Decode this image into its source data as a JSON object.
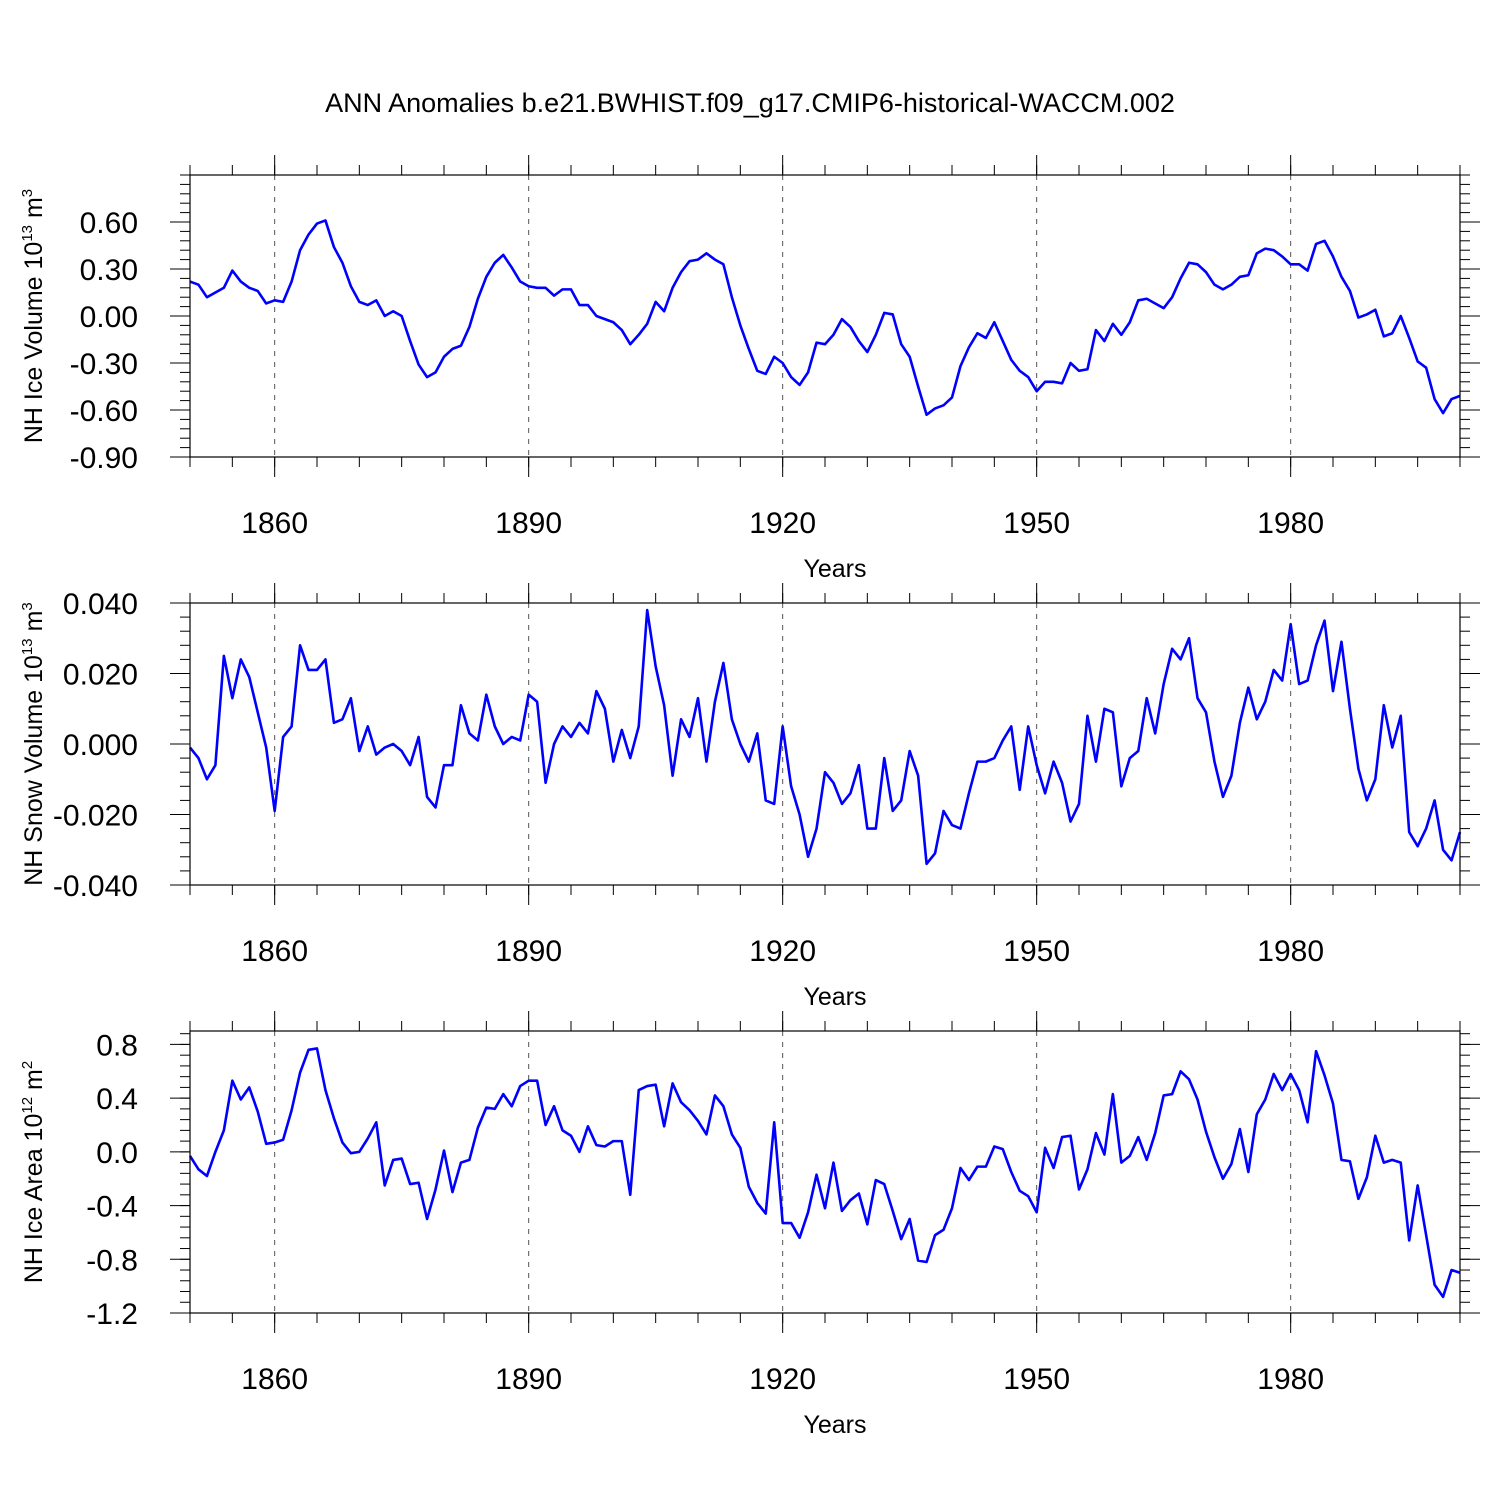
{
  "figure_title": "ANN Anomalies b.e21.BWHIST.f09_g17.CMIP6-historical-WACCM.002",
  "colors": {
    "line": "#0000ff",
    "frame": "#000000",
    "grid": "#555555"
  },
  "chart_data": [
    {
      "type": "line",
      "ylabel": {
        "base": "NH Ice Volume 10",
        "exp": "13",
        "unit": " m",
        "unit_exp": "3"
      },
      "xlabel": "Years",
      "xlim": [
        1850,
        2000
      ],
      "ylim": [
        -0.9,
        0.9
      ],
      "xticks": [
        1860,
        1890,
        1920,
        1950,
        1980
      ],
      "xtick_labels": [
        "1860",
        "1890",
        "1920",
        "1950",
        "1980"
      ],
      "yticks": [
        0.6,
        0.3,
        0.0,
        -0.3,
        -0.6,
        -0.9
      ],
      "ytick_labels": [
        "0.60",
        "0.30",
        "0.00",
        "-0.30",
        "-0.60",
        "-0.90"
      ],
      "x_start": 1850,
      "values": [
        0.22,
        0.2,
        0.12,
        0.15,
        0.18,
        0.29,
        0.22,
        0.18,
        0.16,
        0.08,
        0.1,
        0.09,
        0.22,
        0.42,
        0.52,
        0.59,
        0.61,
        0.44,
        0.34,
        0.19,
        0.09,
        0.07,
        0.1,
        0.0,
        0.03,
        0.0,
        -0.16,
        -0.31,
        -0.39,
        -0.36,
        -0.26,
        -0.21,
        -0.19,
        -0.07,
        0.11,
        0.25,
        0.34,
        0.39,
        0.31,
        0.22,
        0.19,
        0.18,
        0.18,
        0.13,
        0.17,
        0.17,
        0.07,
        0.07,
        0.0,
        -0.02,
        -0.04,
        -0.09,
        -0.18,
        -0.12,
        -0.05,
        0.09,
        0.03,
        0.18,
        0.28,
        0.35,
        0.36,
        0.4,
        0.36,
        0.33,
        0.12,
        -0.06,
        -0.21,
        -0.35,
        -0.37,
        -0.26,
        -0.3,
        -0.39,
        -0.44,
        -0.36,
        -0.17,
        -0.18,
        -0.12,
        -0.02,
        -0.07,
        -0.16,
        -0.23,
        -0.12,
        0.02,
        0.01,
        -0.18,
        -0.26,
        -0.45,
        -0.63,
        -0.59,
        -0.57,
        -0.52,
        -0.32,
        -0.2,
        -0.11,
        -0.14,
        -0.04,
        -0.16,
        -0.28,
        -0.35,
        -0.39,
        -0.48,
        -0.42,
        -0.42,
        -0.43,
        -0.3,
        -0.35,
        -0.34,
        -0.09,
        -0.16,
        -0.05,
        -0.12,
        -0.04,
        0.1,
        0.11,
        0.08,
        0.05,
        0.12,
        0.24,
        0.34,
        0.33,
        0.28,
        0.2,
        0.17,
        0.2,
        0.25,
        0.26,
        0.4,
        0.43,
        0.42,
        0.38,
        0.33,
        0.33,
        0.29,
        0.46,
        0.48,
        0.38,
        0.25,
        0.16,
        -0.01,
        0.01,
        0.04,
        -0.13,
        -0.11,
        0.0,
        -0.14,
        -0.29,
        -0.33,
        -0.53,
        -0.62,
        -0.53,
        -0.51
      ]
    },
    {
      "type": "line",
      "ylabel": {
        "base": "NH Snow Volume 10",
        "exp": "13",
        "unit": " m",
        "unit_exp": "3"
      },
      "xlabel": "Years",
      "xlim": [
        1850,
        2000
      ],
      "ylim": [
        -0.04,
        0.04
      ],
      "xticks": [
        1860,
        1890,
        1920,
        1950,
        1980
      ],
      "xtick_labels": [
        "1860",
        "1890",
        "1920",
        "1950",
        "1980"
      ],
      "yticks": [
        0.04,
        0.02,
        0.0,
        -0.02,
        -0.04
      ],
      "ytick_labels": [
        "0.040",
        "0.020",
        "0.000",
        "-0.020",
        "-0.040"
      ],
      "x_start": 1850,
      "values": [
        -0.001,
        -0.004,
        -0.01,
        -0.006,
        0.025,
        0.013,
        0.024,
        0.019,
        0.009,
        -0.001,
        -0.019,
        0.002,
        0.005,
        0.028,
        0.021,
        0.021,
        0.024,
        0.006,
        0.007,
        0.013,
        -0.002,
        0.005,
        -0.003,
        -0.001,
        0.0,
        -0.002,
        -0.006,
        0.002,
        -0.015,
        -0.018,
        -0.006,
        -0.006,
        0.011,
        0.003,
        0.001,
        0.014,
        0.005,
        0.0,
        0.002,
        0.001,
        0.014,
        0.012,
        -0.011,
        0.0,
        0.005,
        0.002,
        0.006,
        0.003,
        0.015,
        0.01,
        -0.005,
        0.004,
        -0.004,
        0.005,
        0.038,
        0.022,
        0.011,
        -0.009,
        0.007,
        0.002,
        0.013,
        -0.005,
        0.012,
        0.023,
        0.007,
        0.0,
        -0.005,
        0.003,
        -0.016,
        -0.017,
        0.005,
        -0.012,
        -0.02,
        -0.032,
        -0.024,
        -0.008,
        -0.011,
        -0.017,
        -0.014,
        -0.006,
        -0.024,
        -0.024,
        -0.004,
        -0.019,
        -0.016,
        -0.002,
        -0.009,
        -0.034,
        -0.031,
        -0.019,
        -0.023,
        -0.024,
        -0.014,
        -0.005,
        -0.005,
        -0.004,
        0.001,
        0.005,
        -0.013,
        0.005,
        -0.006,
        -0.014,
        -0.005,
        -0.011,
        -0.022,
        -0.017,
        0.008,
        -0.005,
        0.01,
        0.009,
        -0.012,
        -0.004,
        -0.002,
        0.013,
        0.003,
        0.017,
        0.027,
        0.024,
        0.03,
        0.013,
        0.009,
        -0.005,
        -0.015,
        -0.009,
        0.006,
        0.016,
        0.007,
        0.012,
        0.021,
        0.018,
        0.034,
        0.017,
        0.018,
        0.028,
        0.035,
        0.015,
        0.029,
        0.01,
        -0.007,
        -0.016,
        -0.01,
        0.011,
        -0.001,
        0.008,
        -0.025,
        -0.029,
        -0.024,
        -0.016,
        -0.03,
        -0.033,
        -0.025
      ]
    },
    {
      "type": "line",
      "ylabel": {
        "base": "NH Ice Area 10",
        "exp": "12",
        "unit": " m",
        "unit_exp": "2"
      },
      "xlabel": "Years",
      "xlim": [
        1850,
        2000
      ],
      "ylim": [
        -1.2,
        0.9
      ],
      "xticks": [
        1860,
        1890,
        1920,
        1950,
        1980
      ],
      "xtick_labels": [
        "1860",
        "1890",
        "1920",
        "1950",
        "1980"
      ],
      "yticks": [
        0.8,
        0.4,
        0.0,
        -0.4,
        -0.8,
        -1.2
      ],
      "ytick_labels": [
        "0.8",
        "0.4",
        "0.0",
        "-0.4",
        "-0.8",
        "-1.2"
      ],
      "x_start": 1850,
      "values": [
        -0.03,
        -0.13,
        -0.18,
        0.0,
        0.16,
        0.53,
        0.39,
        0.48,
        0.3,
        0.06,
        0.07,
        0.09,
        0.31,
        0.59,
        0.76,
        0.77,
        0.46,
        0.25,
        0.07,
        -0.01,
        0.0,
        0.1,
        0.22,
        -0.25,
        -0.06,
        -0.05,
        -0.24,
        -0.23,
        -0.5,
        -0.28,
        0.01,
        -0.3,
        -0.08,
        -0.06,
        0.18,
        0.33,
        0.32,
        0.43,
        0.34,
        0.49,
        0.53,
        0.53,
        0.2,
        0.34,
        0.16,
        0.12,
        0.0,
        0.19,
        0.05,
        0.04,
        0.08,
        0.08,
        -0.32,
        0.46,
        0.49,
        0.5,
        0.19,
        0.51,
        0.37,
        0.31,
        0.23,
        0.13,
        0.42,
        0.34,
        0.13,
        0.03,
        -0.26,
        -0.38,
        -0.46,
        0.22,
        -0.53,
        -0.53,
        -0.64,
        -0.45,
        -0.17,
        -0.42,
        -0.08,
        -0.44,
        -0.36,
        -0.31,
        -0.54,
        -0.21,
        -0.24,
        -0.44,
        -0.65,
        -0.5,
        -0.81,
        -0.82,
        -0.62,
        -0.58,
        -0.42,
        -0.12,
        -0.21,
        -0.11,
        -0.11,
        0.04,
        0.02,
        -0.15,
        -0.29,
        -0.33,
        -0.45,
        0.03,
        -0.12,
        0.11,
        0.12,
        -0.28,
        -0.13,
        0.14,
        -0.02,
        0.43,
        -0.08,
        -0.03,
        0.11,
        -0.06,
        0.14,
        0.42,
        0.43,
        0.6,
        0.54,
        0.39,
        0.15,
        -0.04,
        -0.2,
        -0.09,
        0.17,
        -0.15,
        0.28,
        0.39,
        0.58,
        0.46,
        0.58,
        0.46,
        0.22,
        0.75,
        0.57,
        0.36,
        -0.06,
        -0.07,
        -0.35,
        -0.19,
        0.12,
        -0.08,
        -0.06,
        -0.08,
        -0.66,
        -0.25,
        -0.62,
        -0.99,
        -1.08,
        -0.88,
        -0.9
      ]
    }
  ]
}
